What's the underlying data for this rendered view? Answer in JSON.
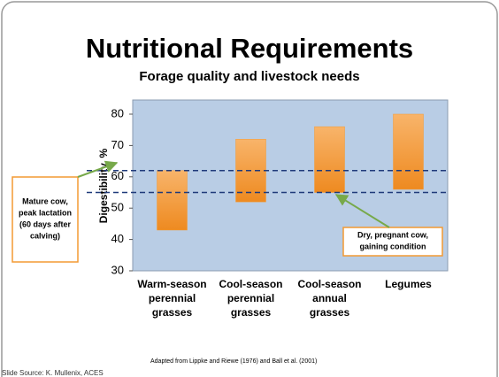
{
  "chart_data": {
    "type": "floating-bar",
    "title": "Nutritional Requirements",
    "subtitle": "Forage quality and livestock needs",
    "y_label": "Digestibility, %",
    "categories": [
      "Warm-season perennial grasses",
      "Cool-season perennial grasses",
      "Cool-season annual grasses",
      "Legumes"
    ],
    "ranges": [
      [
        43,
        62
      ],
      [
        52,
        72
      ],
      [
        55,
        76
      ],
      [
        56,
        80
      ]
    ],
    "color": "#f39a33",
    "ylim": [
      30,
      80
    ],
    "yticks": [
      30,
      40,
      50,
      60,
      70,
      80
    ],
    "reference_lines": [
      {
        "value": 62,
        "label": "Mature cow, peak lactation (60 days after calving)"
      },
      {
        "value": 55,
        "label": "Dry, pregnant cow, gaining condition"
      }
    ],
    "source_note": "Adapted from Lippke and Riewe (1976) and Ball et al. (2001)",
    "credit": "Slide Source: K. Mullenix, ACES"
  }
}
